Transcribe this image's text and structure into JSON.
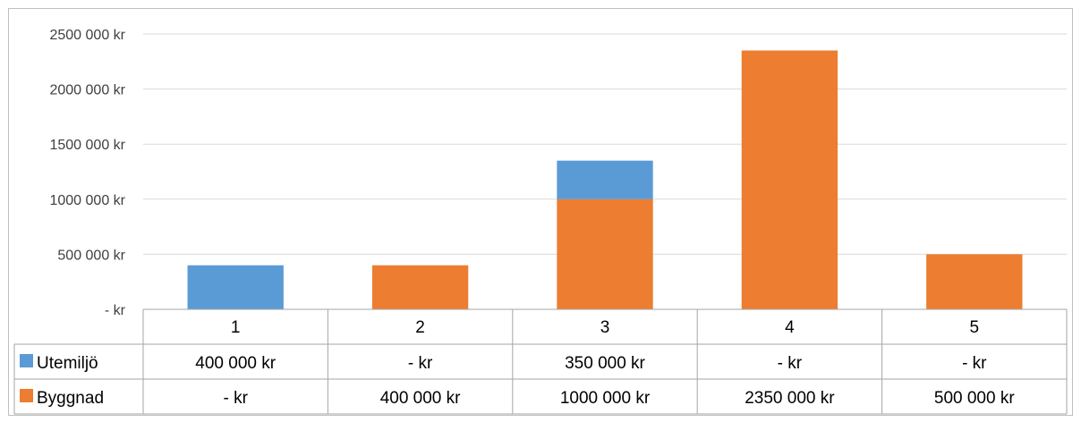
{
  "chart_data": {
    "type": "bar",
    "stacked": true,
    "categories": [
      "1",
      "2",
      "3",
      "4",
      "5"
    ],
    "series": [
      {
        "name": "Utemiljö",
        "color": "#5b9bd5",
        "values": [
          400000,
          0,
          350000,
          0,
          0
        ],
        "labels": [
          "400 000 kr",
          "- kr",
          "350 000 kr",
          "- kr",
          "- kr"
        ]
      },
      {
        "name": "Byggnad",
        "color": "#ed7d31",
        "values": [
          0,
          400000,
          1000000,
          2350000,
          500000
        ],
        "labels": [
          "- kr",
          "400 000 kr",
          "1000 000 kr",
          "2350 000 kr",
          "500 000 kr"
        ]
      }
    ],
    "stack_order": [
      "Byggnad",
      "Utemiljö"
    ],
    "ylim": [
      0,
      2500000
    ],
    "yticks": [
      0,
      500000,
      1000000,
      1500000,
      2000000,
      2500000
    ],
    "ytick_labels": [
      "- kr",
      "500 000 kr",
      "1000 000 kr",
      "1500 000 kr",
      "2000 000 kr",
      "2500 000 kr"
    ],
    "grid": true,
    "legend": "data-table",
    "grid_color": "#d9d9d9",
    "table_line_color": "#a6a6a6"
  }
}
